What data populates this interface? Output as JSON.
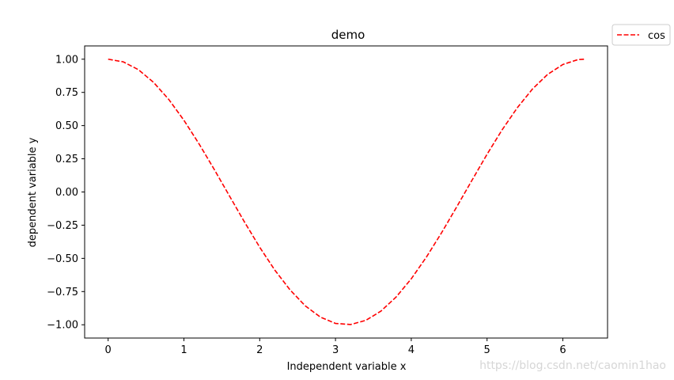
{
  "chart_data": {
    "type": "line",
    "title": "demo",
    "xlabel": "Independent variable x",
    "ylabel": "dependent variable y",
    "xlim": [
      -0.31,
      6.59
    ],
    "ylim": [
      -1.1,
      1.1
    ],
    "xticks": [
      0,
      1,
      2,
      3,
      4,
      5,
      6
    ],
    "xtick_labels": [
      "0",
      "1",
      "2",
      "3",
      "4",
      "5",
      "6"
    ],
    "yticks": [
      1.0,
      0.75,
      0.5,
      0.25,
      0.0,
      -0.25,
      -0.5,
      -0.75,
      -1.0
    ],
    "ytick_labels": [
      "1.00",
      "0.75",
      "0.50",
      "0.25",
      "0.00",
      "−0.25",
      "−0.50",
      "−0.75",
      "−1.00"
    ],
    "grid": false,
    "legend_position": "outside-top-right",
    "series": [
      {
        "name": "cos",
        "color": "#ff0000",
        "linestyle": "dashed",
        "x": [
          0.0,
          0.2,
          0.4,
          0.6,
          0.8,
          1.0,
          1.2,
          1.4,
          1.6,
          1.8,
          2.0,
          2.2,
          2.4,
          2.6,
          2.8,
          3.0,
          3.2,
          3.4,
          3.6,
          3.8,
          4.0,
          4.2,
          4.4,
          4.6,
          4.8,
          5.0,
          5.2,
          5.4,
          5.6,
          5.8,
          6.0,
          6.2,
          6.28
        ],
        "y": [
          1.0,
          0.98,
          0.921,
          0.825,
          0.697,
          0.54,
          0.362,
          0.17,
          -0.029,
          -0.227,
          -0.416,
          -0.589,
          -0.737,
          -0.857,
          -0.942,
          -0.99,
          -0.998,
          -0.967,
          -0.897,
          -0.791,
          -0.654,
          -0.49,
          -0.307,
          -0.112,
          0.087,
          0.284,
          0.469,
          0.635,
          0.776,
          0.886,
          0.96,
          0.997,
          1.0
        ]
      }
    ]
  },
  "watermark": "https://blog.csdn.net/caomin1hao"
}
